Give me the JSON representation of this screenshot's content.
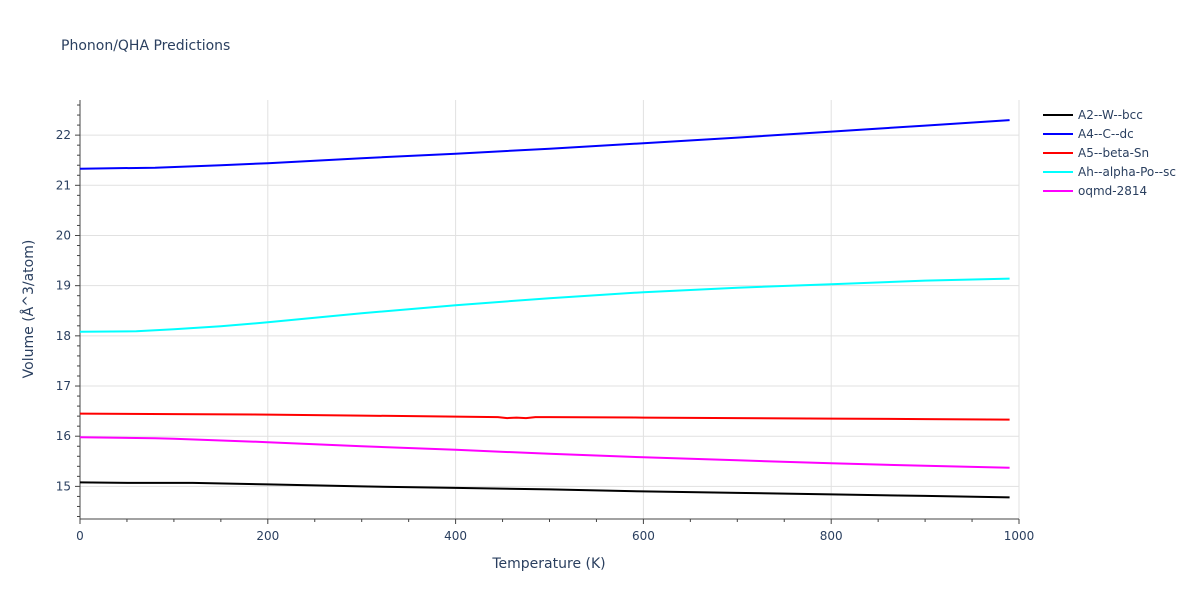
{
  "chart_data": {
    "type": "line",
    "title": "Phonon/QHA Predictions",
    "xlabel": "Temperature (K)",
    "ylabel": "Volume (Å^3/atom)",
    "xlim": [
      0,
      1000
    ],
    "ylim": [
      14.35,
      22.7
    ],
    "xticks": [
      0,
      200,
      400,
      600,
      800,
      1000
    ],
    "yticks": [
      15,
      16,
      17,
      18,
      19,
      20,
      21,
      22
    ],
    "grid": true,
    "legend_position": "right",
    "series": [
      {
        "name": "A2--W--bcc",
        "color": "#000000",
        "x": [
          0,
          60,
          120,
          200,
          300,
          400,
          500,
          600,
          700,
          800,
          900,
          990
        ],
        "y": [
          15.08,
          15.07,
          15.07,
          15.04,
          15.0,
          14.97,
          14.94,
          14.9,
          14.87,
          14.84,
          14.81,
          14.78
        ]
      },
      {
        "name": "A4--C--dc",
        "color": "#0000ff",
        "x": [
          0,
          80,
          150,
          200,
          300,
          400,
          500,
          600,
          700,
          800,
          900,
          990
        ],
        "y": [
          21.33,
          21.35,
          21.4,
          21.44,
          21.54,
          21.63,
          21.73,
          21.84,
          21.95,
          22.07,
          22.19,
          22.3
        ]
      },
      {
        "name": "A5--beta-Sn",
        "color": "#ff0000",
        "x": [
          0,
          100,
          200,
          300,
          400,
          445,
          455,
          465,
          475,
          485,
          500,
          600,
          700,
          800,
          900,
          990
        ],
        "y": [
          16.45,
          16.44,
          16.43,
          16.41,
          16.39,
          16.38,
          16.36,
          16.37,
          16.36,
          16.38,
          16.38,
          16.37,
          16.36,
          16.35,
          16.34,
          16.33
        ]
      },
      {
        "name": "Ah--alpha-Po--sc",
        "color": "#00ffff",
        "x": [
          0,
          60,
          100,
          150,
          200,
          300,
          400,
          500,
          600,
          700,
          800,
          900,
          990
        ],
        "y": [
          18.08,
          18.09,
          18.13,
          18.19,
          18.27,
          18.45,
          18.61,
          18.75,
          18.87,
          18.96,
          19.03,
          19.1,
          19.14
        ]
      },
      {
        "name": "oqmd-2814",
        "color": "#ff00ff",
        "x": [
          0,
          80,
          100,
          200,
          300,
          400,
          500,
          600,
          700,
          800,
          900,
          990
        ],
        "y": [
          15.98,
          15.96,
          15.95,
          15.88,
          15.8,
          15.73,
          15.65,
          15.58,
          15.52,
          15.46,
          15.41,
          15.37
        ]
      }
    ]
  }
}
